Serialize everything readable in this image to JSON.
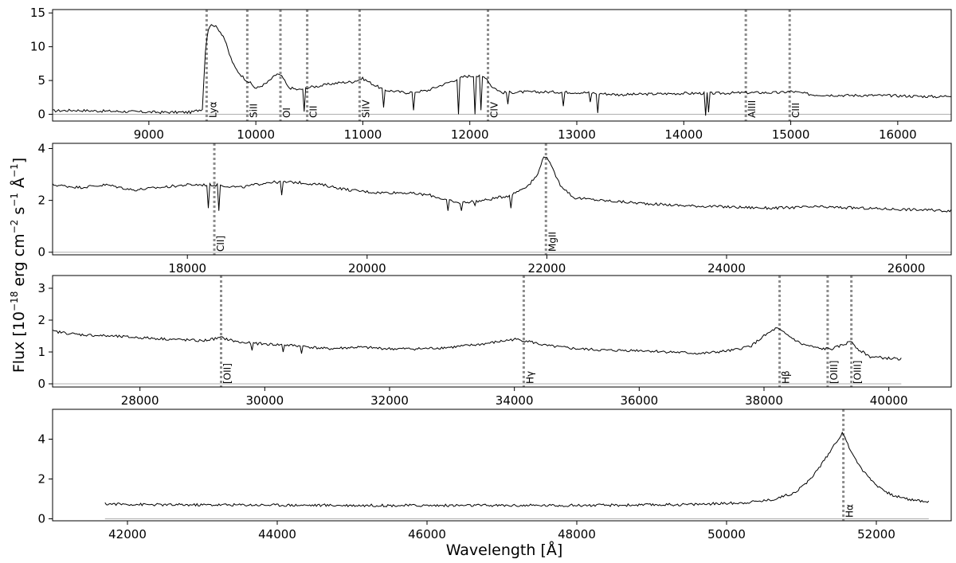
{
  "figure": {
    "ylabel": "Flux [10$^{-18}$ erg cm$^{-2}$ s$^{-1}$ Å$^{-1}$]",
    "ylabel_parts": {
      "prefix": "Flux [10",
      "exp1": "−18",
      "mid1": " erg cm",
      "exp2": "−2",
      "mid2": " s",
      "exp3": "−1",
      "mid3": " Å",
      "exp4": "−1",
      "suffix": "]"
    },
    "xlabel": "Wavelength [Å]"
  },
  "colors": {
    "spectrum": "#000000",
    "zero_line": "#b0b0b0",
    "emission_marker": "#8c8c8c"
  },
  "chart_data": [
    {
      "type": "line",
      "panel": 1,
      "xlim": [
        8100,
        16500
      ],
      "ylim": [
        -1,
        15.5
      ],
      "xticks": [
        9000,
        10000,
        11000,
        12000,
        13000,
        14000,
        15000,
        16000
      ],
      "xtick_labels": [
        "9000",
        "10000",
        "11000",
        "12000",
        "13000",
        "14000",
        "15000",
        "16000"
      ],
      "yticks": [
        0,
        5,
        10,
        15
      ],
      "ytick_labels": [
        "0",
        "5",
        "10",
        "15"
      ],
      "x": [
        8100,
        8300,
        8500,
        8800,
        9100,
        9400,
        9500,
        9530,
        9560,
        9600,
        9650,
        9700,
        9750,
        9800,
        9850,
        9900,
        9950,
        10000,
        10100,
        10200,
        10250,
        10300,
        10400,
        10500,
        10600,
        10700,
        10800,
        10900,
        11000,
        11100,
        11200,
        11400,
        11600,
        11800,
        11950,
        12050,
        12150,
        12200,
        12300,
        12500,
        12800,
        13100,
        13400,
        13700,
        14000,
        14300,
        14600,
        14900,
        15000,
        15200,
        15500,
        15800,
        16100,
        16400,
        16500
      ],
      "y": [
        0.5,
        0.6,
        0.5,
        0.4,
        0.3,
        0.3,
        0.8,
        10.0,
        13.0,
        13.3,
        12.6,
        11.5,
        9.0,
        7.0,
        6.0,
        5.2,
        4.6,
        3.8,
        4.6,
        6.0,
        5.5,
        4.0,
        3.6,
        4.0,
        4.2,
        4.5,
        4.7,
        4.8,
        5.3,
        4.4,
        3.6,
        3.2,
        3.5,
        4.7,
        5.6,
        5.7,
        5.5,
        4.2,
        3.2,
        3.3,
        3.3,
        3.2,
        2.9,
        3.0,
        3.1,
        3.1,
        3.2,
        3.2,
        3.4,
        2.9,
        2.8,
        2.8,
        2.7,
        2.6,
        2.8
      ],
      "absorptions": [
        [
          10450,
          0.4
        ],
        [
          11200,
          1.0
        ],
        [
          11480,
          0.6
        ],
        [
          11900,
          0.0
        ],
        [
          12050,
          0.0
        ],
        [
          12100,
          0.6
        ],
        [
          12350,
          1.5
        ],
        [
          12880,
          1.2
        ],
        [
          13120,
          1.8
        ],
        [
          13200,
          0.2
        ],
        [
          14200,
          -0.2
        ],
        [
          14230,
          0.3
        ]
      ],
      "lines": [
        {
          "label": "Lyα",
          "x": 9540
        },
        {
          "label": "SiII",
          "x": 9920
        },
        {
          "label": "OI",
          "x": 10230
        },
        {
          "label": "CII",
          "x": 10480
        },
        {
          "label": "SiIV",
          "x": 10970
        },
        {
          "label": "CIV",
          "x": 12170
        },
        {
          "label": "AlIII",
          "x": 14580
        },
        {
          "label": "CIII",
          "x": 14990
        }
      ]
    },
    {
      "type": "line",
      "panel": 2,
      "xlim": [
        16500,
        26500
      ],
      "ylim": [
        -0.1,
        4.2
      ],
      "xticks": [
        18000,
        20000,
        22000,
        24000,
        26000
      ],
      "xtick_labels": [
        "18000",
        "20000",
        "22000",
        "24000",
        "26000"
      ],
      "yticks": [
        0,
        2,
        4
      ],
      "ytick_labels": [
        "0",
        "2",
        "4"
      ],
      "x": [
        16500,
        16800,
        17100,
        17400,
        17700,
        18000,
        18300,
        18600,
        18900,
        19200,
        19500,
        19800,
        20100,
        20400,
        20700,
        21000,
        21300,
        21600,
        21800,
        21900,
        21950,
        22000,
        22050,
        22150,
        22300,
        22600,
        23000,
        23500,
        24000,
        24500,
        25000,
        25500,
        26000,
        26500
      ],
      "y": [
        2.6,
        2.5,
        2.6,
        2.4,
        2.5,
        2.6,
        2.6,
        2.5,
        2.7,
        2.7,
        2.6,
        2.4,
        2.3,
        2.3,
        2.2,
        1.9,
        2.0,
        2.2,
        2.6,
        3.0,
        3.6,
        3.7,
        3.3,
        2.6,
        2.1,
        2.0,
        1.9,
        1.8,
        1.75,
        1.7,
        1.75,
        1.7,
        1.65,
        1.6
      ],
      "absorptions": [
        [
          18230,
          1.7
        ],
        [
          18350,
          1.6
        ],
        [
          19050,
          2.2
        ],
        [
          20900,
          1.6
        ],
        [
          21050,
          1.6
        ],
        [
          21200,
          1.8
        ],
        [
          21600,
          1.7
        ]
      ],
      "lines": [
        {
          "label": "CII]",
          "x": 18300
        },
        {
          "label": "MgII",
          "x": 21990
        }
      ]
    },
    {
      "type": "line",
      "panel": 3,
      "xlim": [
        26600,
        41000
      ],
      "ylim": [
        -0.1,
        3.4
      ],
      "xticks": [
        28000,
        30000,
        32000,
        34000,
        36000,
        38000,
        40000
      ],
      "xtick_labels": [
        "28000",
        "30000",
        "32000",
        "34000",
        "36000",
        "38000",
        "40000"
      ],
      "yticks": [
        0,
        1,
        2,
        3
      ],
      "ytick_labels": [
        "0",
        "1",
        "2",
        "3"
      ],
      "x": [
        26600,
        27000,
        27500,
        28000,
        28500,
        29000,
        29300,
        29600,
        30000,
        30500,
        31000,
        31500,
        32000,
        32500,
        33000,
        33500,
        34000,
        34200,
        34500,
        35000,
        35500,
        36000,
        36500,
        37000,
        37500,
        37800,
        38000,
        38200,
        38400,
        38600,
        38900,
        39100,
        39300,
        39400,
        39500,
        39700,
        40000,
        40200
      ],
      "y": [
        1.65,
        1.55,
        1.5,
        1.45,
        1.4,
        1.35,
        1.45,
        1.3,
        1.25,
        1.2,
        1.1,
        1.15,
        1.1,
        1.1,
        1.15,
        1.25,
        1.4,
        1.35,
        1.2,
        1.1,
        1.05,
        1.05,
        1.0,
        0.95,
        1.05,
        1.2,
        1.5,
        1.75,
        1.5,
        1.25,
        1.1,
        1.1,
        1.25,
        1.35,
        1.1,
        0.85,
        0.8,
        0.78
      ],
      "absorptions": [
        [
          29800,
          1.05
        ],
        [
          30300,
          1.0
        ],
        [
          30600,
          0.95
        ]
      ],
      "lines": [
        {
          "label": "[OII]",
          "x": 29300
        },
        {
          "label": "Hγ",
          "x": 34150
        },
        {
          "label": "Hβ",
          "x": 38250
        },
        {
          "label": "[OIII]",
          "x": 39020
        },
        {
          "label": "[OIII]",
          "x": 39400
        }
      ]
    },
    {
      "type": "line",
      "panel": 4,
      "xlim": [
        41000,
        53000
      ],
      "ylim": [
        -0.1,
        5.5
      ],
      "xticks": [
        42000,
        44000,
        46000,
        48000,
        50000,
        52000
      ],
      "xtick_labels": [
        "42000",
        "44000",
        "46000",
        "48000",
        "50000",
        "52000"
      ],
      "yticks": [
        0,
        2,
        4
      ],
      "ytick_labels": [
        "0",
        "2",
        "4"
      ],
      "x": [
        41700,
        42500,
        43500,
        44500,
        45500,
        46500,
        47500,
        48500,
        49500,
        50200,
        50600,
        50900,
        51100,
        51300,
        51450,
        51550,
        51650,
        51800,
        52000,
        52200,
        52400,
        52700
      ],
      "y": [
        0.75,
        0.7,
        0.7,
        0.68,
        0.67,
        0.67,
        0.67,
        0.68,
        0.72,
        0.8,
        0.95,
        1.3,
        1.9,
        2.9,
        3.8,
        4.3,
        3.5,
        2.5,
        1.7,
        1.2,
        1.0,
        0.85
      ],
      "absorptions": [],
      "lines": [
        {
          "label": "Hα",
          "x": 51560
        }
      ]
    }
  ]
}
